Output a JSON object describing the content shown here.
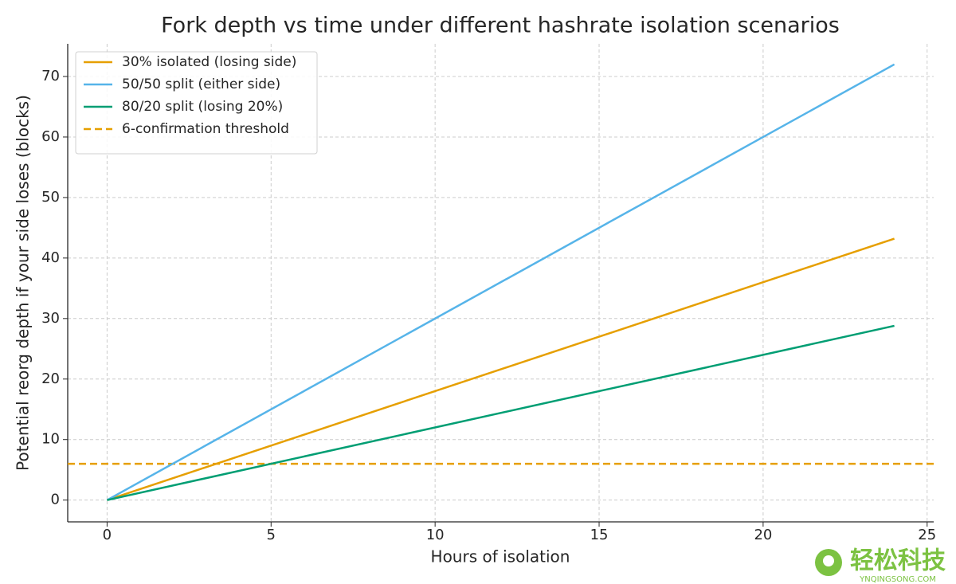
{
  "chart_data": {
    "type": "line",
    "title": "Fork depth vs time under different hashrate isolation scenarios",
    "x_label": "Hours of isolation",
    "y_label": "Potential reorg depth if your side loses (blocks)",
    "x": [
      0,
      24
    ],
    "series": [
      {
        "name": "30% isolated (losing side)",
        "color": "#e69f00",
        "values": [
          0,
          43.2
        ]
      },
      {
        "name": "50/50 split (either side)",
        "color": "#56b4e9",
        "values": [
          0,
          72
        ]
      },
      {
        "name": "80/20 split (losing 20%)",
        "color": "#009e73",
        "values": [
          0,
          28.8
        ]
      }
    ],
    "hlines": [
      {
        "name": "6-confirmation threshold",
        "color": "#e69f00",
        "value": 6,
        "style": "dashed"
      }
    ],
    "xlim": [
      -1.2,
      25.2
    ],
    "xticks": [
      0,
      5,
      10,
      15,
      20,
      25
    ],
    "ylim": [
      -3.6,
      75.4
    ],
    "yticks": [
      0,
      10,
      20,
      30,
      40,
      50,
      60,
      70
    ],
    "grid": true,
    "legend": "upper left",
    "watermark": {
      "text": "轻松科技",
      "subtext": "YNQINGSONG.COM"
    }
  }
}
